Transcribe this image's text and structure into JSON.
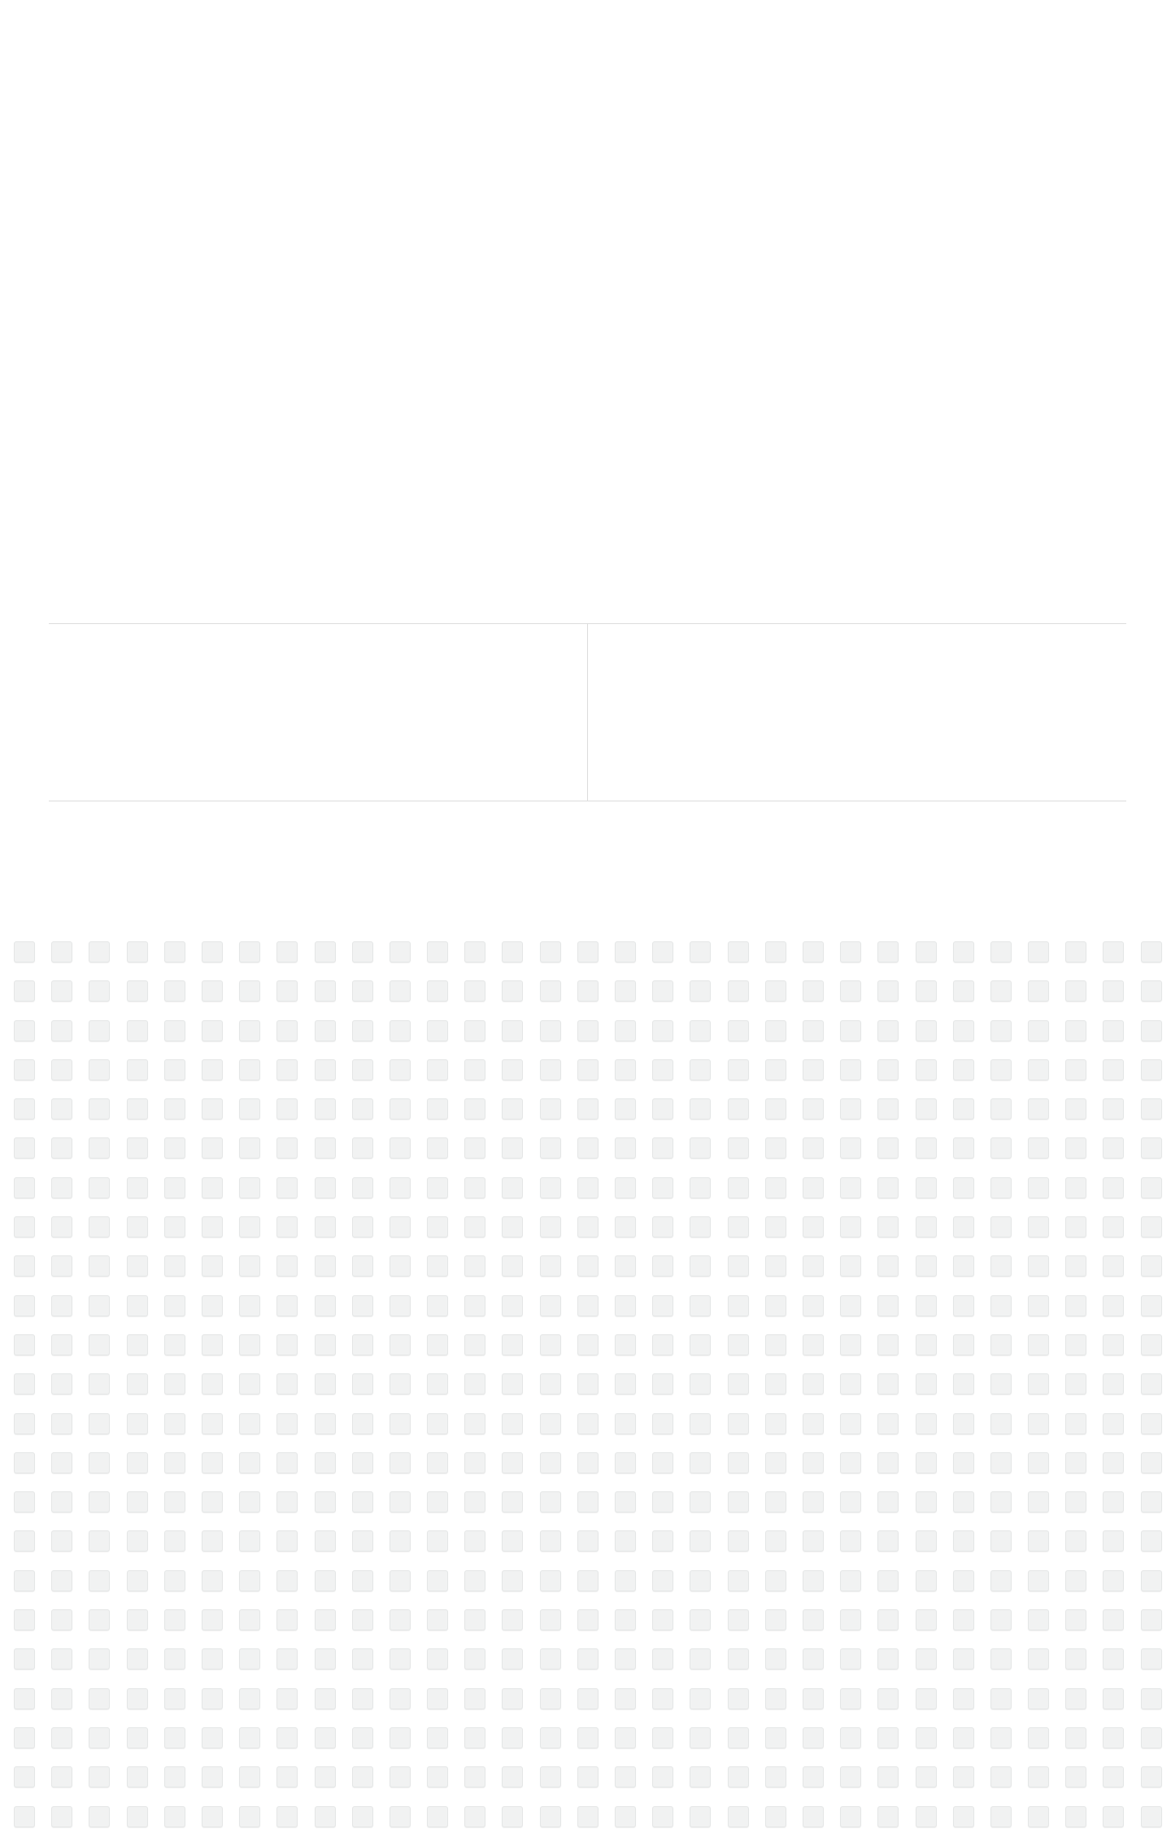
{
  "page": {
    "background": "#ffffff",
    "divider_color": "#dcdcdc"
  },
  "tile_grid": {
    "tile_color": "#f1f2f2",
    "tile_border_color": "#e4e6e6",
    "columns": 31,
    "rows": 23
  }
}
